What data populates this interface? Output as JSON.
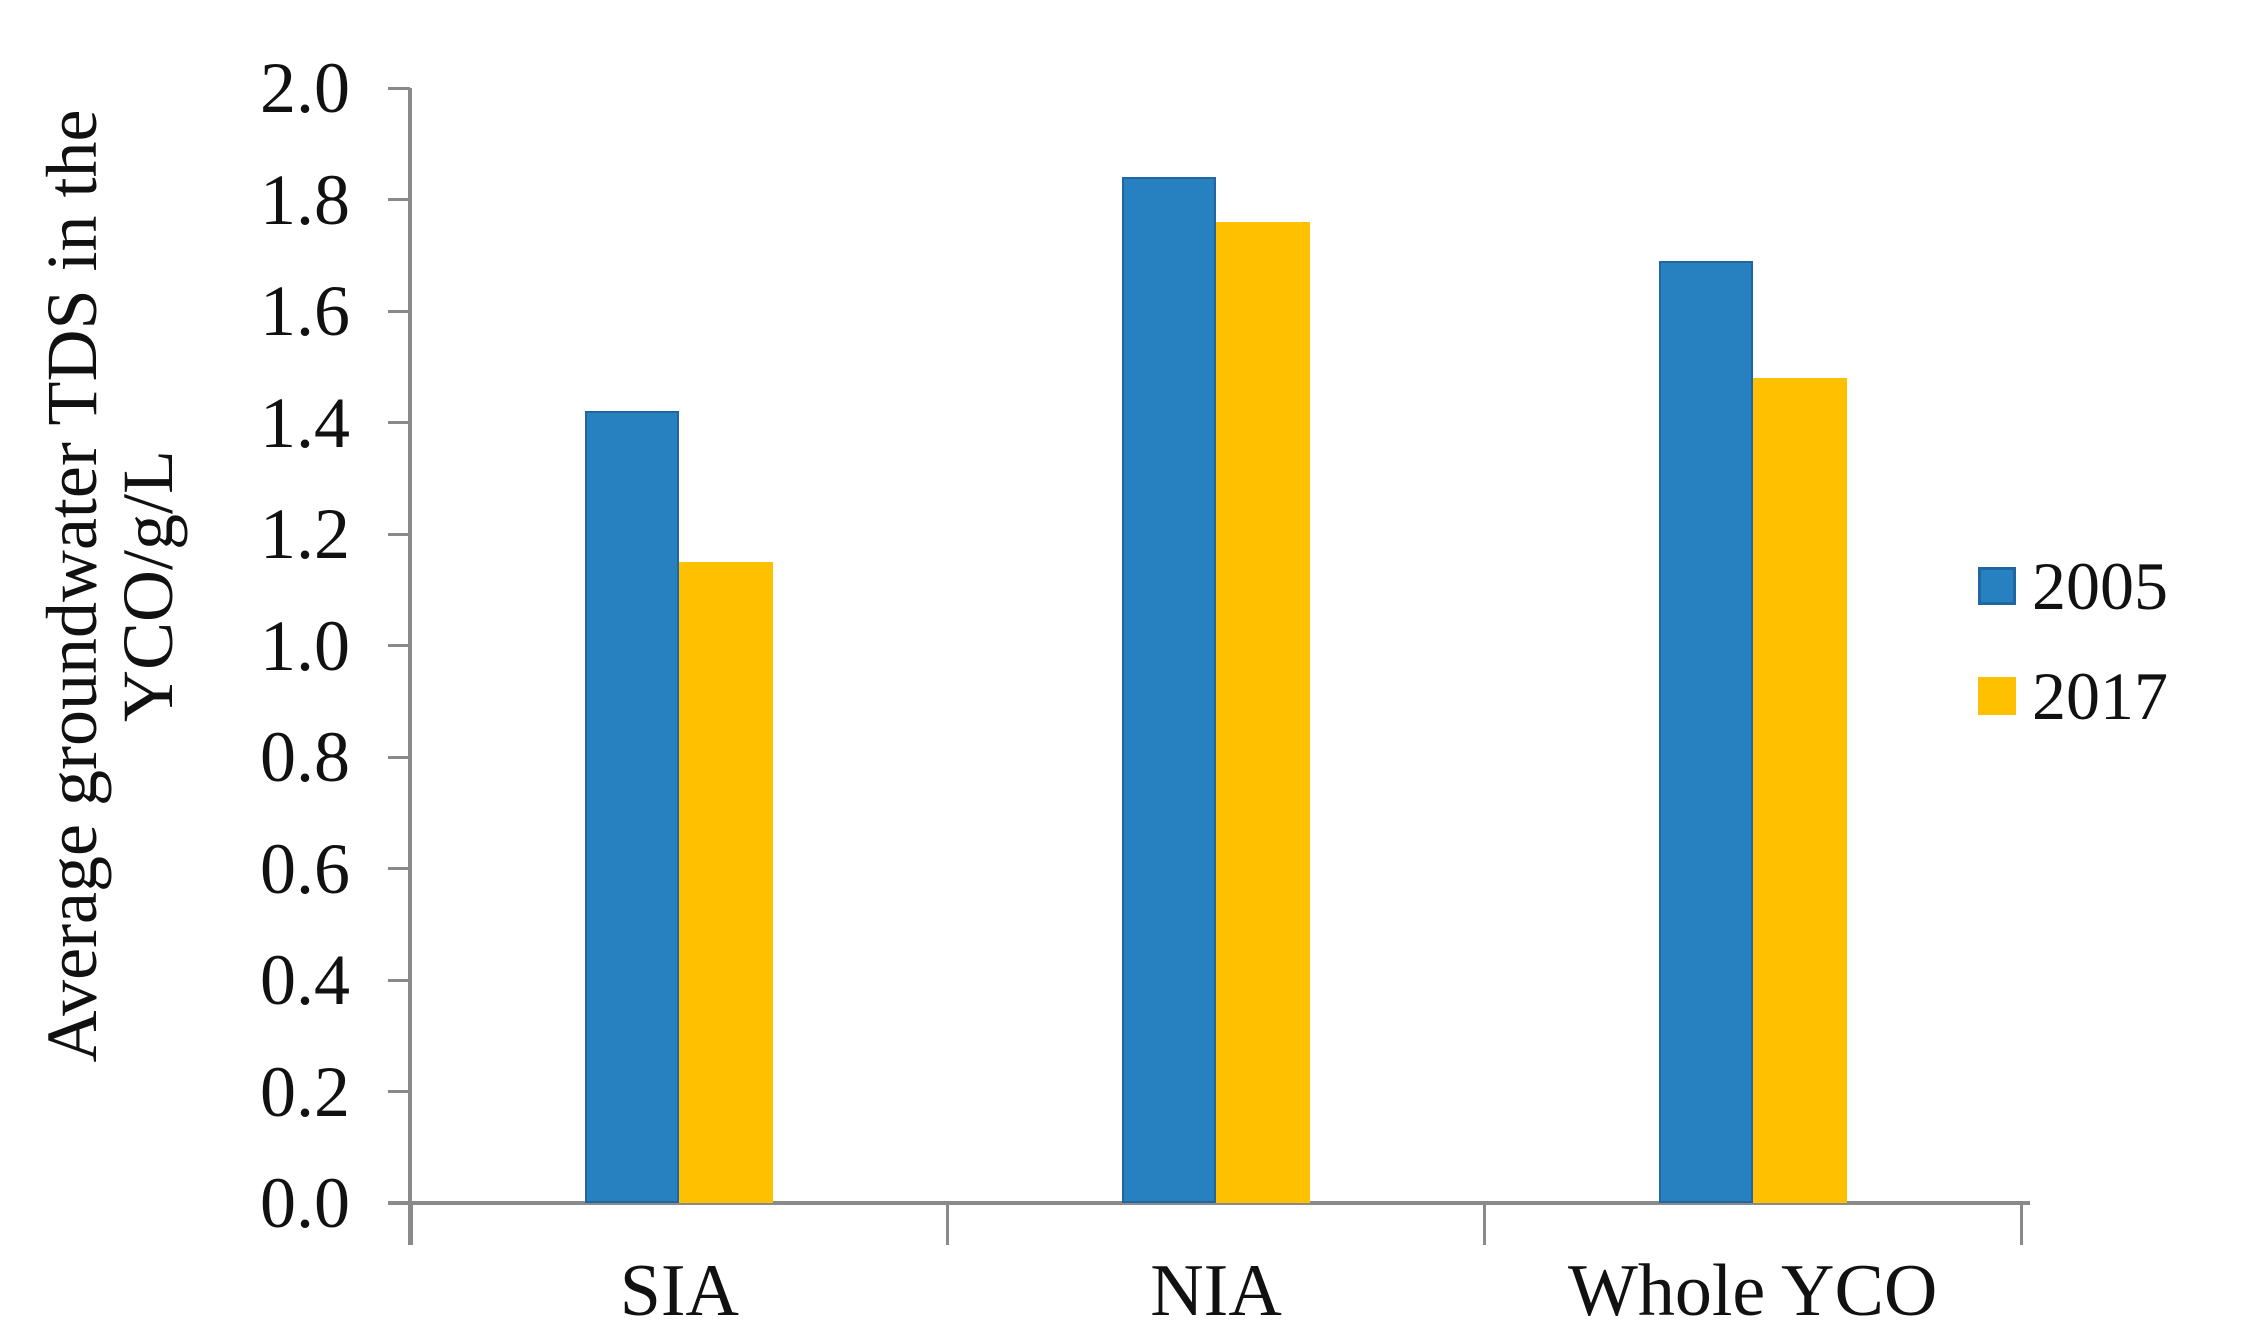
{
  "chart_data": {
    "type": "bar",
    "title": "",
    "ylabel": "Average groundwater TDS in the YCO/g/L",
    "ylabel_lines": [
      "Average groundwater TDS in the",
      "YCO/g/L"
    ],
    "xlabel": "",
    "categories": [
      "SIA",
      "NIA",
      "Whole YCO"
    ],
    "series": [
      {
        "name": "2005",
        "color": "#2780BF",
        "border_color": "#1F66A3",
        "values": [
          1.42,
          1.84,
          1.69
        ]
      },
      {
        "name": "2017",
        "color": "#FFC000",
        "border_color": "#FFC000",
        "values": [
          1.15,
          1.76,
          1.48
        ]
      }
    ],
    "ylim": [
      0.0,
      2.0
    ],
    "ytick_step": 0.2,
    "ytick_labels": [
      "0.0",
      "0.2",
      "0.4",
      "0.6",
      "0.8",
      "1.0",
      "1.2",
      "1.4",
      "1.6",
      "1.8",
      "2.0"
    ],
    "grid": false,
    "legend_position": "right",
    "axis_color": "#8A8A8A",
    "text_color": "#111111"
  }
}
